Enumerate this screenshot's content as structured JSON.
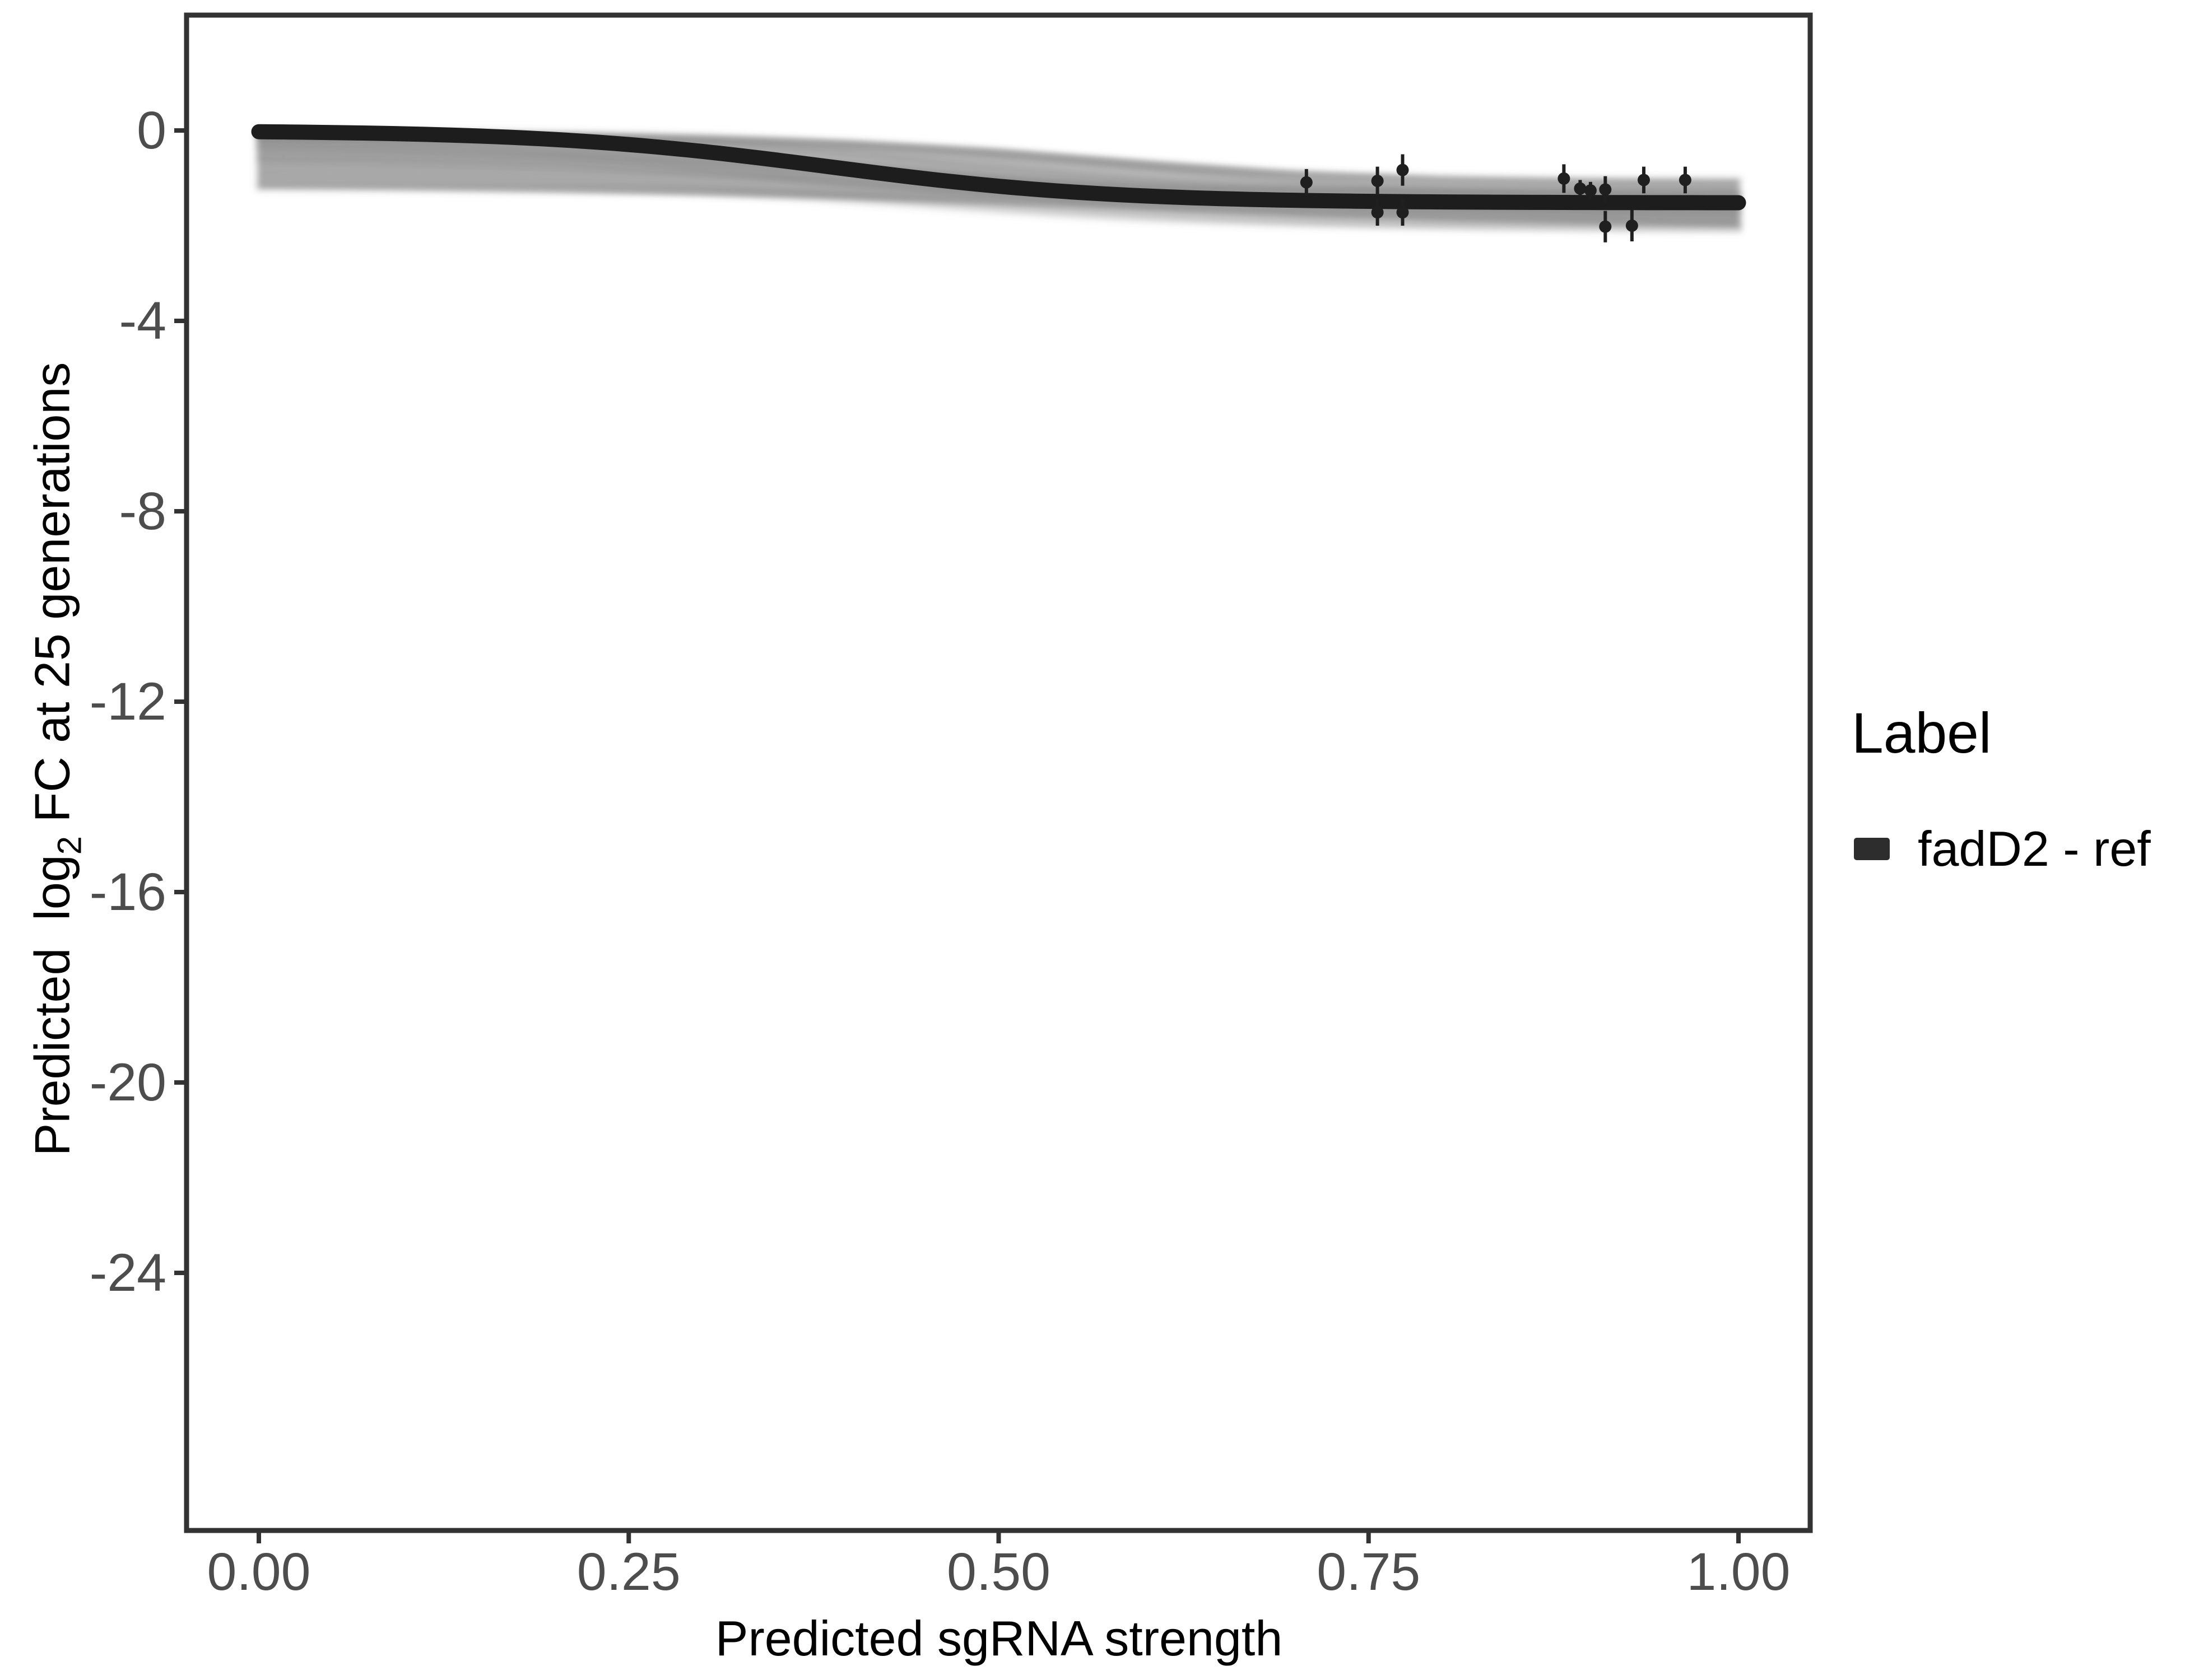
{
  "figure": {
    "background": "#ffffff",
    "panel_border_color": "#333333",
    "tick_color": "#333333",
    "tick_label_color": "#4d4d4d",
    "title_color": "#000000",
    "band_color": "#b6b6b6",
    "ensemble_color": "#5a5a5a",
    "curve_color": "#1d1d1d",
    "point_color": "#1f1f1f"
  },
  "axes": {
    "x": {
      "title": "Predicted sgRNA strength",
      "tick_labels": [
        "0.00",
        "0.25",
        "0.50",
        "0.75",
        "1.00"
      ],
      "tick_values": [
        0,
        0.25,
        0.5,
        0.75,
        1.0
      ]
    },
    "y": {
      "title_prefix": "Predicted  log",
      "title_sub": "2",
      "title_suffix": " FC at 25 generations",
      "tick_labels": [
        "0",
        "-4",
        "-8",
        "-12",
        "-16",
        "-20",
        "-24"
      ],
      "tick_values": [
        0,
        -4,
        -8,
        -12,
        -16,
        -20,
        -24
      ]
    }
  },
  "legend": {
    "title": "Label",
    "items": [
      {
        "label": "fadD2 - ref",
        "swatch_color": "#2d2d2d"
      }
    ]
  },
  "chart_data": {
    "type": "line",
    "title": "",
    "xlabel": "Predicted sgRNA strength",
    "ylabel": "Predicted log2 FC at 25 generations",
    "xlim": [
      -0.049,
      1.048
    ],
    "ylim": [
      -29.4,
      2.42
    ],
    "grid": false,
    "legend_position": "right",
    "series": [
      {
        "name": "fadD2 - ref",
        "role": "fitted dose-response curve",
        "color": "#1d1d1d",
        "logistic": {
          "L": -1.52,
          "mid": 0.385,
          "k": 0.095
        },
        "x": [
          0.0,
          0.05,
          0.1,
          0.15,
          0.2,
          0.25,
          0.3,
          0.35,
          0.4,
          0.45,
          0.5,
          0.55,
          0.6,
          0.65,
          0.7,
          0.75,
          0.8,
          0.85,
          0.9,
          0.95,
          1.0
        ],
        "y": [
          -0.03,
          -0.04,
          -0.07,
          -0.12,
          -0.19,
          -0.3,
          -0.44,
          -0.62,
          -0.82,
          -1.01,
          -1.17,
          -1.29,
          -1.38,
          -1.43,
          -1.47,
          -1.49,
          -1.5,
          -1.51,
          -1.51,
          -1.52,
          -1.52
        ]
      }
    ],
    "uncertainty_band": {
      "role": "posterior ensemble of curves (gray band)",
      "x": [
        0.0,
        0.1,
        0.2,
        0.3,
        0.4,
        0.5,
        0.6,
        0.7,
        0.8,
        0.9,
        1.0
      ],
      "upper": [
        -0.02,
        -0.04,
        -0.07,
        -0.12,
        -0.22,
        -0.38,
        -0.62,
        -0.85,
        -0.98,
        -1.02,
        -1.03
      ],
      "lower": [
        -1.22,
        -1.25,
        -1.3,
        -1.36,
        -1.45,
        -1.55,
        -1.68,
        -1.8,
        -1.9,
        -1.97,
        -2.02
      ]
    },
    "ensemble_lines": [
      {
        "s": -0.03,
        "e": -1.05,
        "m": 0.5,
        "k": 0.1
      },
      {
        "s": -0.05,
        "e": -1.15,
        "m": 0.55,
        "k": 0.12
      },
      {
        "s": -0.08,
        "e": -1.25,
        "m": 0.45,
        "k": 0.09
      },
      {
        "s": -0.1,
        "e": -1.35,
        "m": 0.4,
        "k": 0.1
      },
      {
        "s": -0.15,
        "e": -1.45,
        "m": 0.52,
        "k": 0.11
      },
      {
        "s": -0.2,
        "e": -1.3,
        "m": 0.38,
        "k": 0.08
      },
      {
        "s": -0.25,
        "e": -1.55,
        "m": 0.48,
        "k": 0.13
      },
      {
        "s": -0.3,
        "e": -1.6,
        "m": 0.42,
        "k": 0.1
      },
      {
        "s": -0.35,
        "e": -1.5,
        "m": 0.35,
        "k": 0.09
      },
      {
        "s": -0.4,
        "e": -1.7,
        "m": 0.5,
        "k": 0.12
      },
      {
        "s": -0.5,
        "e": -1.65,
        "m": 0.44,
        "k": 0.1
      },
      {
        "s": -0.55,
        "e": -1.8,
        "m": 0.55,
        "k": 0.14
      },
      {
        "s": -0.6,
        "e": -1.75,
        "m": 0.4,
        "k": 0.1
      },
      {
        "s": -0.7,
        "e": -1.85,
        "m": 0.47,
        "k": 0.11
      },
      {
        "s": -0.8,
        "e": -1.9,
        "m": 0.52,
        "k": 0.12
      },
      {
        "s": -0.9,
        "e": -1.95,
        "m": 0.43,
        "k": 0.1
      },
      {
        "s": -1.0,
        "e": -2.0,
        "m": 0.5,
        "k": 0.13
      },
      {
        "s": -1.1,
        "e": -2.05,
        "m": 0.45,
        "k": 0.11
      },
      {
        "s": -1.2,
        "e": -2.1,
        "m": 0.55,
        "k": 0.12
      },
      {
        "s": -0.12,
        "e": -1.4,
        "m": 0.6,
        "k": 0.1
      }
    ],
    "points": {
      "name": "observed sgRNA fold-changes (pointrange)",
      "color": "#1f1f1f",
      "x": [
        0.708,
        0.756,
        0.773,
        0.756,
        0.773,
        0.882,
        0.893,
        0.9,
        0.91,
        0.91,
        0.928,
        0.936,
        0.964
      ],
      "y": [
        -1.09,
        -1.06,
        -0.83,
        -1.72,
        -1.72,
        -1.01,
        -1.22,
        -1.26,
        -1.24,
        -2.02,
        -2.0,
        -1.04,
        -1.04
      ],
      "yerr": [
        0.28,
        0.3,
        0.33,
        0.28,
        0.28,
        0.3,
        0.18,
        0.18,
        0.28,
        0.33,
        0.33,
        0.28,
        0.28
      ]
    }
  }
}
